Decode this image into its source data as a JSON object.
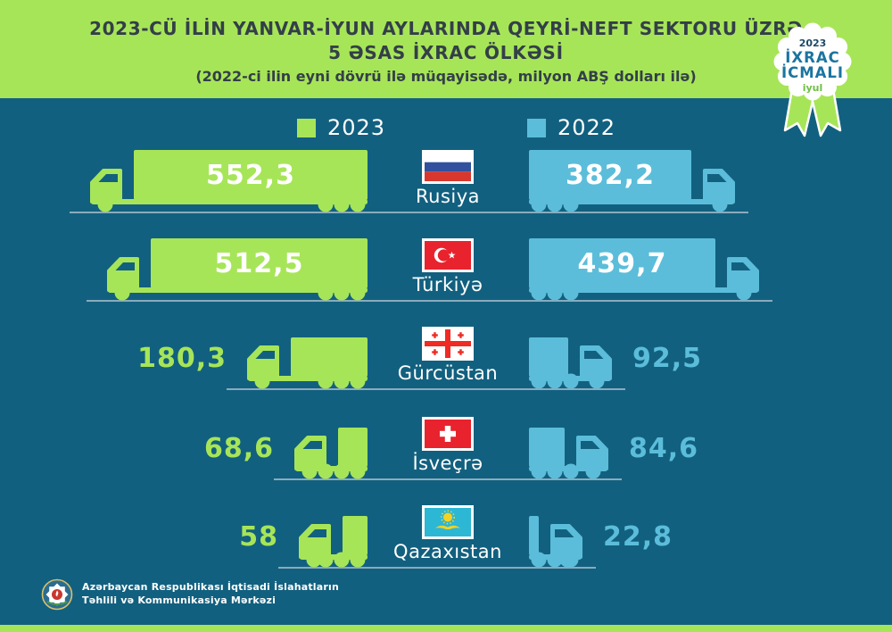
{
  "header": {
    "title_line1": "2023-CÜ İLİN YANVAR-İYUN AYLARINDA QEYRİ-NEFT SEKTORU ÜZRƏ",
    "title_line2": "5 ƏSAS İXRAC ÖLKƏSİ",
    "subtitle": "(2022-ci ilin eyni dövrü ilə müqayisədə, milyon ABŞ dolları ilə)"
  },
  "badge": {
    "year": "2023",
    "line1": "İXRAC",
    "line2": "İCMALI",
    "month": "iyul"
  },
  "legend": [
    {
      "label": "2023",
      "color": "#a7e558"
    },
    {
      "label": "2022",
      "color": "#5bbdda"
    }
  ],
  "chart_data": {
    "type": "bar",
    "orientation": "horizontal-pictogram-trucks",
    "unit": "milyon ABŞ dolları",
    "title": "2023-cü ilin yanvar-iyun aylarında qeyri-neft sektoru üzrə 5 əsas ixrac ölkəsi",
    "categories": [
      "Rusiya",
      "Türkiyə",
      "Gürcüstan",
      "İsveçrə",
      "Qazaxıstan"
    ],
    "series": [
      {
        "name": "2023",
        "color": "#a7e558",
        "values": [
          552.3,
          512.5,
          180.3,
          68.6,
          58
        ]
      },
      {
        "name": "2022",
        "color": "#5bbdda",
        "values": [
          382.2,
          439.7,
          92.5,
          84.6,
          22.8
        ]
      }
    ],
    "legend_position": "top",
    "grid": false
  },
  "rows": [
    {
      "country": "Rusiya",
      "flag": "russia",
      "v2023": 552.3,
      "v2022": 382.2,
      "display2023": "552,3",
      "display2022": "382,2"
    },
    {
      "country": "Türkiyə",
      "flag": "turkey",
      "v2023": 512.5,
      "v2022": 439.7,
      "display2023": "512,5",
      "display2022": "439,7"
    },
    {
      "country": "Gürcüstan",
      "flag": "georgia",
      "v2023": 180.3,
      "v2022": 92.5,
      "display2023": "180,3",
      "display2022": "92,5"
    },
    {
      "country": "İsveçrə",
      "flag": "switzerland",
      "v2023": 68.6,
      "v2022": 84.6,
      "display2023": "68,6",
      "display2022": "84,6"
    },
    {
      "country": "Qazaxıstan",
      "flag": "kazakhstan",
      "v2023": 58,
      "v2022": 22.8,
      "display2023": "58",
      "display2022": "22,8"
    }
  ],
  "footer": {
    "line1": "Azərbaycan Respublikası İqtisadi İslahatların",
    "line2": "Təhlili və Kommunikasiya Mərkəzi"
  },
  "colors": {
    "background": "#12607f",
    "green_2023": "#a7e558",
    "blue_2022": "#5bbdda",
    "road_line": "#8aabbc",
    "title_text": "#333f48",
    "badge_navy": "#1e4a68",
    "badge_teal": "#1b74a0",
    "badge_green": "#6fbf44"
  }
}
